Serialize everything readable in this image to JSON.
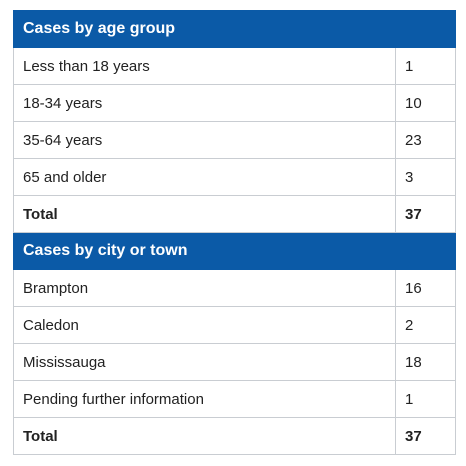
{
  "tables": {
    "age": {
      "header": "Cases by age group",
      "rows": [
        {
          "label": "Less than 18 years",
          "value": "1"
        },
        {
          "label": "18-34 years",
          "value": "10"
        },
        {
          "label": "35-64 years",
          "value": "23"
        },
        {
          "label": "65 and older",
          "value": "3"
        }
      ],
      "total": {
        "label": "Total",
        "value": "37"
      }
    },
    "city": {
      "header": "Cases by city or town",
      "rows": [
        {
          "label": "Brampton",
          "value": "16"
        },
        {
          "label": "Caledon",
          "value": "2"
        },
        {
          "label": "Mississauga",
          "value": "18"
        },
        {
          "label": "Pending further information",
          "value": "1"
        }
      ],
      "total": {
        "label": "Total",
        "value": "37"
      }
    }
  },
  "colors": {
    "header_bg": "#0b5aa7",
    "header_text": "#ffffff",
    "border": "#c9cdd2"
  }
}
